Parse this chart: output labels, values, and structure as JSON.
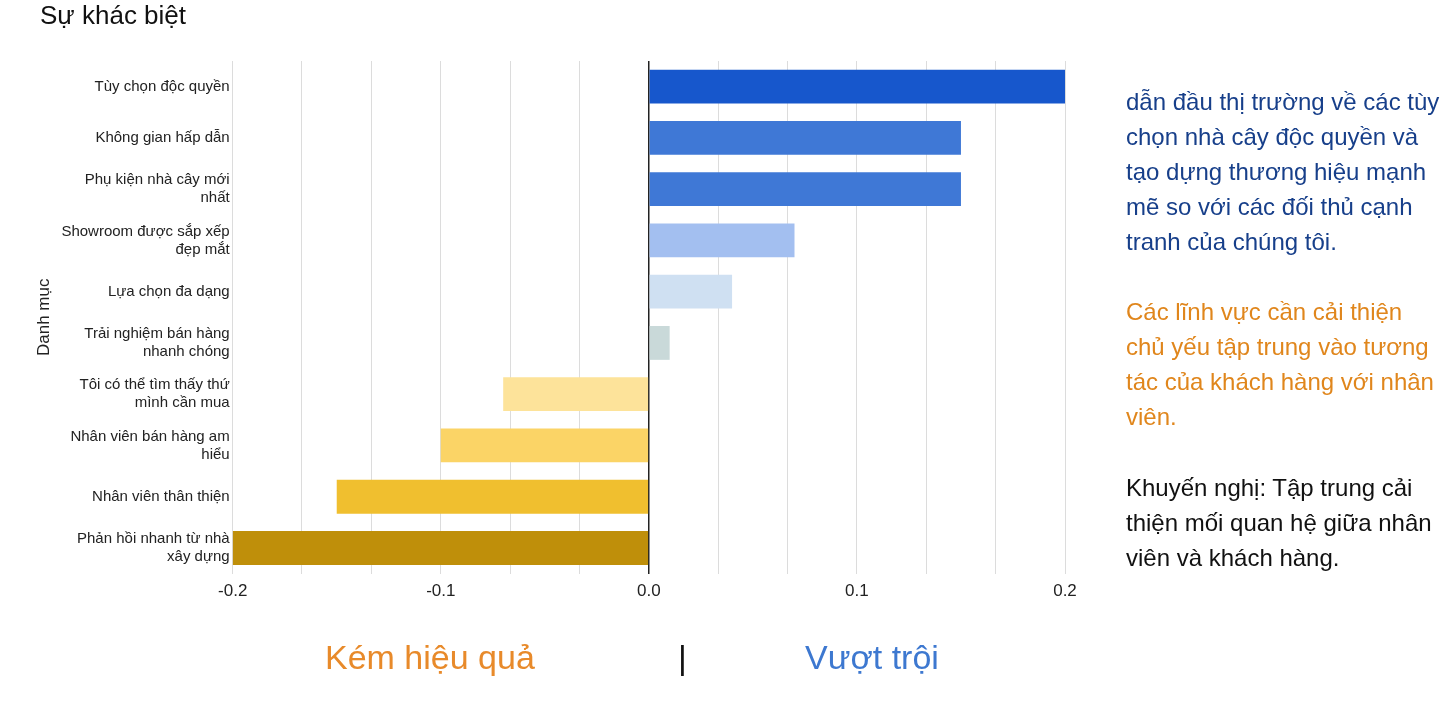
{
  "chart_data": {
    "type": "bar",
    "orientation": "horizontal",
    "title": "Sự khác biệt",
    "ylabel": "Danh mục",
    "categories": [
      "Tùy chọn độc quyền",
      "Không gian hấp dẫn",
      "Phụ kiện nhà cây mới nhất",
      "Showroom được sắp xếp đẹp mắt",
      "Lựa chọn đa dạng",
      "Trải nghiệm bán hàng nhanh chóng",
      "Tôi có thể tìm thấy thứ mình cần mua",
      "Nhân viên bán hàng am hiểu",
      "Nhân viên thân thiện",
      "Phản hồi nhanh từ nhà xây dựng"
    ],
    "values": [
      0.2,
      0.15,
      0.15,
      0.07,
      0.04,
      0.01,
      -0.07,
      -0.1,
      -0.15,
      -0.2
    ],
    "colors": [
      "#1757cc",
      "#3f78d6",
      "#3f78d6",
      "#a3bff0",
      "#cfe0f2",
      "#c9d9d9",
      "#fde39a",
      "#fbd466",
      "#f0bf2f",
      "#bf8f0a"
    ],
    "xlim": [
      -0.2,
      0.2
    ],
    "xticks": [
      {
        "value": -0.2,
        "label": "-0.2"
      },
      {
        "value": -0.1667,
        "label": null
      },
      {
        "value": -0.1333,
        "label": null
      },
      {
        "value": -0.1,
        "label": "-0.1"
      },
      {
        "value": -0.0667,
        "label": null
      },
      {
        "value": -0.0333,
        "label": null
      },
      {
        "value": 0,
        "label": "0.0"
      },
      {
        "value": 0.0333,
        "label": null
      },
      {
        "value": 0.0667,
        "label": null
      },
      {
        "value": 0.1,
        "label": "0.1"
      },
      {
        "value": 0.1333,
        "label": null
      },
      {
        "value": 0.1667,
        "label": null
      },
      {
        "value": 0.2,
        "label": "0.2"
      }
    ],
    "grid": "x",
    "annotations": [
      "dẫn đầu thị trường về các tùy chọn nhà cây độc quyền và tạo dựng thương hiệu mạnh mẽ so với các đối thủ cạnh tranh của chúng tôi.",
      "Các lĩnh vực cần cải thiện chủ yếu tập trung vào tương tác của khách hàng với nhân viên.",
      "Khuyến nghị: Tập trung cải thiện mối quan hệ giữa nhân viên và khách hàng.",
      "Kém hiệu quả",
      "|",
      "Vượt trội"
    ]
  }
}
